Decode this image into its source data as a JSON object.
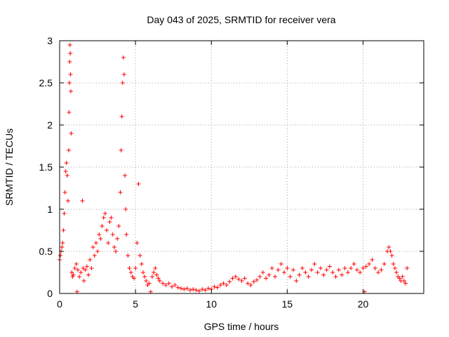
{
  "chart_data": {
    "type": "scatter",
    "title": "Day 043 of 2025, SRMTID for receiver vera",
    "xlabel": "GPS time / hours",
    "ylabel": "SRMTID / TECUs",
    "xlim": [
      0,
      24
    ],
    "ylim": [
      0,
      3
    ],
    "x_ticks": [
      0,
      5,
      10,
      15,
      20
    ],
    "x_tick_labels": [
      "0",
      "5",
      "10",
      "15",
      "20"
    ],
    "y_ticks": [
      0,
      0.5,
      1,
      1.5,
      2,
      2.5,
      3
    ],
    "y_tick_labels": [
      "0",
      "0.5",
      "1",
      "1.5",
      "2",
      "2.5",
      "3"
    ],
    "grid": true,
    "marker": "+",
    "series": [
      {
        "name": "SRMTID",
        "color": "#ff0000",
        "points": [
          [
            0.0,
            0.4
          ],
          [
            0.05,
            0.45
          ],
          [
            0.1,
            0.5
          ],
          [
            0.15,
            0.55
          ],
          [
            0.2,
            0.6
          ],
          [
            0.25,
            0.75
          ],
          [
            0.3,
            0.95
          ],
          [
            0.35,
            1.2
          ],
          [
            0.4,
            1.45
          ],
          [
            0.45,
            1.55
          ],
          [
            0.5,
            1.4
          ],
          [
            0.55,
            1.1
          ],
          [
            0.6,
            1.7
          ],
          [
            0.62,
            2.15
          ],
          [
            0.64,
            2.5
          ],
          [
            0.66,
            2.75
          ],
          [
            0.68,
            2.95
          ],
          [
            0.7,
            2.85
          ],
          [
            0.72,
            2.6
          ],
          [
            0.74,
            2.4
          ],
          [
            0.76,
            1.9
          ],
          [
            0.8,
            0.25
          ],
          [
            0.85,
            0.2
          ],
          [
            0.9,
            0.22
          ],
          [
            1.0,
            0.3
          ],
          [
            1.1,
            0.35
          ],
          [
            1.15,
            0.02
          ],
          [
            1.2,
            0.28
          ],
          [
            1.3,
            0.2
          ],
          [
            1.4,
            0.25
          ],
          [
            1.5,
            1.1
          ],
          [
            1.55,
            0.3
          ],
          [
            1.6,
            0.15
          ],
          [
            1.7,
            0.28
          ],
          [
            1.8,
            0.32
          ],
          [
            1.9,
            0.22
          ],
          [
            2.0,
            0.4
          ],
          [
            2.1,
            0.3
          ],
          [
            2.2,
            0.55
          ],
          [
            2.3,
            0.45
          ],
          [
            2.4,
            0.6
          ],
          [
            2.5,
            0.5
          ],
          [
            2.6,
            0.7
          ],
          [
            2.7,
            0.65
          ],
          [
            2.8,
            0.8
          ],
          [
            2.9,
            0.9
          ],
          [
            3.0,
            0.95
          ],
          [
            3.1,
            0.75
          ],
          [
            3.2,
            0.6
          ],
          [
            3.3,
            0.85
          ],
          [
            3.4,
            0.9
          ],
          [
            3.5,
            0.7
          ],
          [
            3.6,
            0.55
          ],
          [
            3.7,
            0.5
          ],
          [
            3.8,
            0.65
          ],
          [
            3.9,
            0.8
          ],
          [
            4.0,
            1.2
          ],
          [
            4.05,
            1.7
          ],
          [
            4.1,
            2.1
          ],
          [
            4.15,
            2.5
          ],
          [
            4.2,
            2.8
          ],
          [
            4.25,
            2.6
          ],
          [
            4.3,
            1.4
          ],
          [
            4.35,
            1.0
          ],
          [
            4.4,
            0.7
          ],
          [
            4.5,
            0.45
          ],
          [
            4.6,
            0.3
          ],
          [
            4.7,
            0.25
          ],
          [
            4.8,
            0.2
          ],
          [
            4.9,
            0.18
          ],
          [
            5.0,
            0.3
          ],
          [
            5.1,
            0.6
          ],
          [
            5.2,
            1.3
          ],
          [
            5.3,
            0.45
          ],
          [
            5.4,
            0.35
          ],
          [
            5.5,
            0.25
          ],
          [
            5.6,
            0.2
          ],
          [
            5.7,
            0.15
          ],
          [
            5.8,
            0.1
          ],
          [
            5.9,
            0.12
          ],
          [
            6.0,
            0.02
          ],
          [
            6.1,
            0.2
          ],
          [
            6.2,
            0.25
          ],
          [
            6.3,
            0.3
          ],
          [
            6.4,
            0.22
          ],
          [
            6.5,
            0.18
          ],
          [
            6.6,
            0.15
          ],
          [
            6.8,
            0.12
          ],
          [
            7.0,
            0.1
          ],
          [
            7.2,
            0.12
          ],
          [
            7.4,
            0.08
          ],
          [
            7.6,
            0.1
          ],
          [
            7.8,
            0.07
          ],
          [
            8.0,
            0.06
          ],
          [
            8.2,
            0.05
          ],
          [
            8.4,
            0.06
          ],
          [
            8.6,
            0.04
          ],
          [
            8.8,
            0.05
          ],
          [
            9.0,
            0.04
          ],
          [
            9.2,
            0.03
          ],
          [
            9.4,
            0.05
          ],
          [
            9.6,
            0.04
          ],
          [
            9.8,
            0.06
          ],
          [
            10.0,
            0.05
          ],
          [
            10.2,
            0.08
          ],
          [
            10.4,
            0.07
          ],
          [
            10.6,
            0.1
          ],
          [
            10.8,
            0.12
          ],
          [
            11.0,
            0.1
          ],
          [
            11.2,
            0.14
          ],
          [
            11.4,
            0.18
          ],
          [
            11.6,
            0.2
          ],
          [
            11.8,
            0.17
          ],
          [
            12.0,
            0.15
          ],
          [
            12.2,
            0.18
          ],
          [
            12.4,
            0.12
          ],
          [
            12.6,
            0.1
          ],
          [
            12.8,
            0.14
          ],
          [
            13.0,
            0.16
          ],
          [
            13.2,
            0.2
          ],
          [
            13.4,
            0.25
          ],
          [
            13.6,
            0.18
          ],
          [
            13.8,
            0.22
          ],
          [
            14.0,
            0.3
          ],
          [
            14.2,
            0.2
          ],
          [
            14.4,
            0.28
          ],
          [
            14.6,
            0.35
          ],
          [
            14.8,
            0.25
          ],
          [
            15.0,
            0.3
          ],
          [
            15.2,
            0.2
          ],
          [
            15.4,
            0.28
          ],
          [
            15.6,
            0.15
          ],
          [
            15.8,
            0.22
          ],
          [
            16.0,
            0.3
          ],
          [
            16.2,
            0.25
          ],
          [
            16.4,
            0.2
          ],
          [
            16.6,
            0.28
          ],
          [
            16.8,
            0.35
          ],
          [
            17.0,
            0.25
          ],
          [
            17.2,
            0.3
          ],
          [
            17.4,
            0.22
          ],
          [
            17.6,
            0.28
          ],
          [
            17.8,
            0.32
          ],
          [
            18.0,
            0.25
          ],
          [
            18.2,
            0.2
          ],
          [
            18.4,
            0.28
          ],
          [
            18.6,
            0.22
          ],
          [
            18.8,
            0.3
          ],
          [
            19.0,
            0.25
          ],
          [
            19.2,
            0.3
          ],
          [
            19.4,
            0.35
          ],
          [
            19.6,
            0.28
          ],
          [
            19.8,
            0.25
          ],
          [
            20.0,
            0.3
          ],
          [
            20.1,
            0.02
          ],
          [
            20.2,
            0.32
          ],
          [
            20.4,
            0.35
          ],
          [
            20.6,
            0.4
          ],
          [
            20.8,
            0.3
          ],
          [
            21.0,
            0.25
          ],
          [
            21.2,
            0.28
          ],
          [
            21.4,
            0.35
          ],
          [
            21.6,
            0.5
          ],
          [
            21.7,
            0.55
          ],
          [
            21.8,
            0.5
          ],
          [
            21.9,
            0.45
          ],
          [
            22.0,
            0.35
          ],
          [
            22.1,
            0.3
          ],
          [
            22.2,
            0.25
          ],
          [
            22.3,
            0.2
          ],
          [
            22.4,
            0.18
          ],
          [
            22.5,
            0.15
          ],
          [
            22.6,
            0.2
          ],
          [
            22.7,
            0.15
          ],
          [
            22.8,
            0.12
          ],
          [
            22.9,
            0.3
          ]
        ]
      }
    ]
  }
}
